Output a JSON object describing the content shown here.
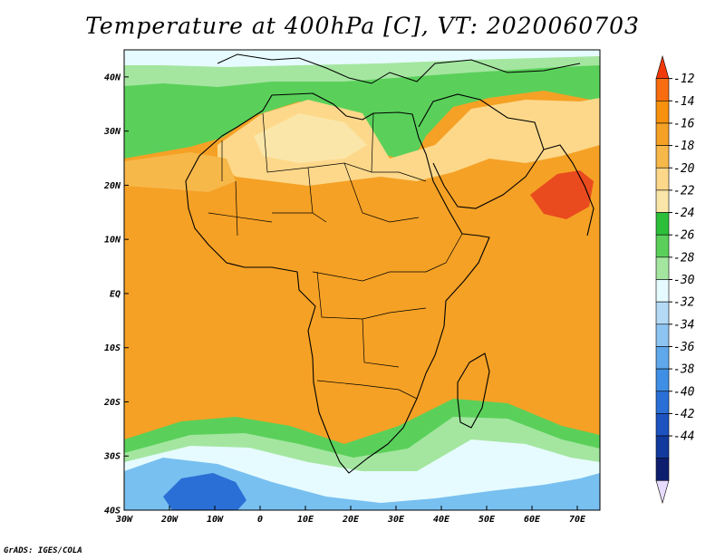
{
  "title": "Temperature at 400hPa [C], VT: 2020060703",
  "credit": "GrADS: IGES/COLA",
  "map": {
    "lat_labels": [
      "40N",
      "30N",
      "20N",
      "10N",
      "EQ",
      "10S",
      "20S",
      "30S",
      "40S"
    ],
    "lon_labels": [
      "30W",
      "20W",
      "10W",
      "0",
      "10E",
      "20E",
      "30E",
      "40E",
      "50E",
      "60E",
      "70E"
    ],
    "lat_range": [
      -40,
      45
    ],
    "lon_range": [
      -30,
      75
    ],
    "background_color": "#f5a125",
    "regions": [
      {
        "name": "northern-subtropical-green-band",
        "color": "#5ad05a"
      },
      {
        "name": "north-light-green-edge",
        "color": "#a4e6a0"
      },
      {
        "name": "north-cyan-edge",
        "color": "#e6fbff"
      },
      {
        "name": "sahara-pale-yellow",
        "color": "#fdd88a"
      },
      {
        "name": "pale-yellow-light",
        "color": "#fae6a8"
      },
      {
        "name": "west-africa-light-orange",
        "color": "#f7b84a"
      },
      {
        "name": "arabian-sea-hot-spot",
        "color": "#e94a1e"
      },
      {
        "name": "southern-green-band",
        "color": "#5ad05a"
      },
      {
        "name": "southern-light-green-band",
        "color": "#a4e6a0"
      },
      {
        "name": "southern-cyan-band",
        "color": "#e6fbff"
      },
      {
        "name": "southern-ocean-blue",
        "color": "#78c0f0"
      },
      {
        "name": "cold-core",
        "color": "#2a6fd6"
      }
    ]
  },
  "colorbar": {
    "labels": [
      "-12",
      "-14",
      "-16",
      "-18",
      "-20",
      "-22",
      "-24",
      "-26",
      "-28",
      "-30",
      "-32",
      "-34",
      "-36",
      "-38",
      "-40",
      "-42",
      "-44"
    ],
    "colors": [
      "#f03a0a",
      "#f76d10",
      "#f7920e",
      "#f5a125",
      "#f7b84a",
      "#fdd88a",
      "#fae6a8",
      "#2dbf3a",
      "#5ad05a",
      "#a4e6a0",
      "#e6fbff",
      "#b4daf6",
      "#8ec4f2",
      "#60a8ec",
      "#3f8fe6",
      "#2a6fd6",
      "#1c53c0",
      "#123a9e",
      "#0d1e6e",
      "#e7dcff"
    ]
  }
}
